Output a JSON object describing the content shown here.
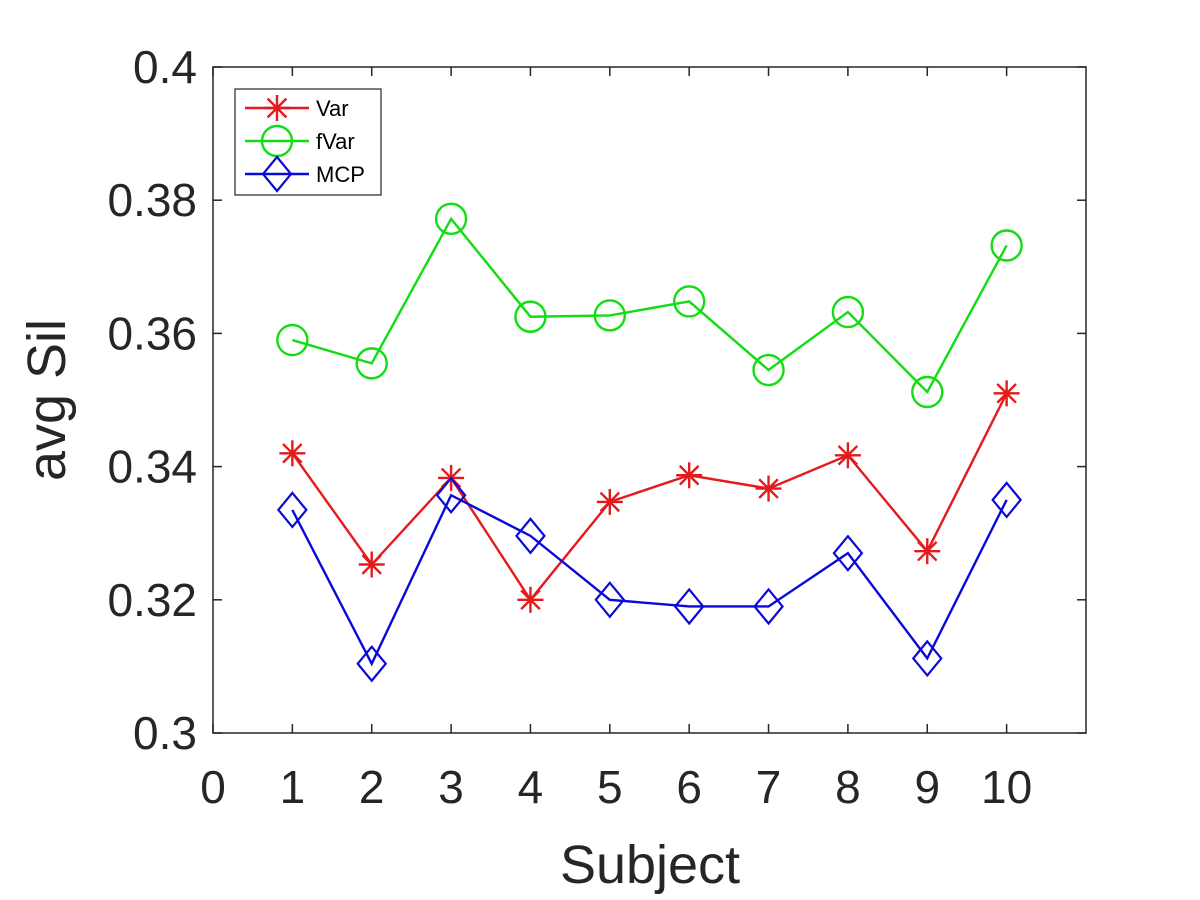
{
  "chart_data": {
    "type": "line",
    "title": "",
    "xlabel": "Subject",
    "ylabel": "avg Sil",
    "xlim": [
      0,
      11
    ],
    "ylim": [
      0.3,
      0.4
    ],
    "xticks": [
      "0",
      "1",
      "2",
      "3",
      "4",
      "5",
      "6",
      "7",
      "8",
      "9",
      "10"
    ],
    "yticks": [
      "0.3",
      "0.32",
      "0.34",
      "0.36",
      "0.38",
      "0.4"
    ],
    "x": [
      1,
      2,
      3,
      4,
      5,
      6,
      7,
      8,
      9,
      10
    ],
    "grid": false,
    "legend_position": "top-left",
    "series": [
      {
        "name": "Var",
        "color": "#e41a1c",
        "marker": "asterisk",
        "values": [
          0.342,
          0.3253,
          0.3383,
          0.32,
          0.3347,
          0.3387,
          0.3367,
          0.3417,
          0.3273,
          0.351
        ]
      },
      {
        "name": "fVar",
        "color": "#11dd11",
        "marker": "circle",
        "values": [
          0.359,
          0.3555,
          0.3772,
          0.3625,
          0.3627,
          0.3648,
          0.3545,
          0.3632,
          0.3512,
          0.3732
        ]
      },
      {
        "name": "MCP",
        "color": "#0a0ad8",
        "marker": "diamond",
        "values": [
          0.3335,
          0.3104,
          0.3357,
          0.3296,
          0.32,
          0.319,
          0.319,
          0.327,
          0.3112,
          0.335
        ]
      }
    ]
  }
}
